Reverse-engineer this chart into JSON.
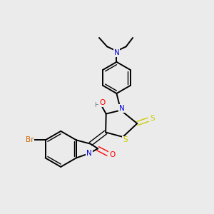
{
  "background_color": "#ebebeb",
  "atom_colors": {
    "N": "#0000dd",
    "O": "#ff0000",
    "S": "#cccc00",
    "Br": "#cc6600",
    "C": "#000000",
    "H": "#5f8090"
  },
  "figsize": [
    3.0,
    3.0
  ],
  "dpi": 100,
  "xlim": [
    0,
    10
  ],
  "ylim": [
    0,
    10
  ]
}
